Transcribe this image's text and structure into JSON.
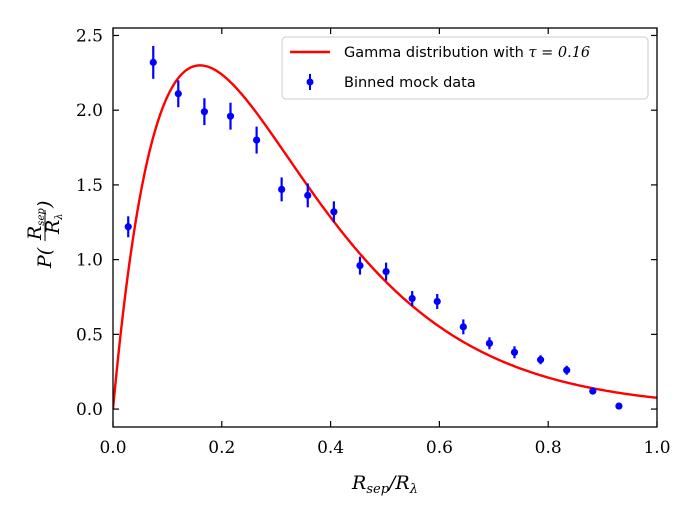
{
  "chart_data": {
    "type": "scatter",
    "xlabel": "R_sep/R_λ",
    "ylabel": "P(R_sep/R_λ)",
    "xlim": [
      0.0,
      1.0
    ],
    "ylim": [
      -0.12,
      2.55
    ],
    "xticks": [
      "0.0",
      "0.2",
      "0.4",
      "0.6",
      "0.8",
      "1.0"
    ],
    "yticks": [
      "0.0",
      "0.5",
      "1.0",
      "1.5",
      "2.0",
      "2.5"
    ],
    "legend_position": "top-right",
    "grid": false,
    "series": [
      {
        "name": "Gamma distribution with τ = 0.16",
        "kind": "line",
        "color": "#ff0000",
        "tau": 0.16,
        "peak": 2.3
      },
      {
        "name": "Binned mock data",
        "kind": "errorbar",
        "color": "#0000ff",
        "x": [
          0.028,
          0.074,
          0.12,
          0.168,
          0.216,
          0.264,
          0.31,
          0.358,
          0.406,
          0.454,
          0.502,
          0.55,
          0.596,
          0.644,
          0.692,
          0.738,
          0.786,
          0.834,
          0.882,
          0.93
        ],
        "y": [
          1.22,
          2.32,
          2.11,
          1.99,
          1.96,
          1.8,
          1.47,
          1.43,
          1.32,
          0.96,
          0.92,
          0.74,
          0.72,
          0.55,
          0.44,
          0.38,
          0.33,
          0.26,
          0.12,
          0.02
        ],
        "yerr": [
          0.07,
          0.11,
          0.09,
          0.09,
          0.09,
          0.09,
          0.08,
          0.08,
          0.07,
          0.06,
          0.06,
          0.05,
          0.05,
          0.05,
          0.04,
          0.04,
          0.03,
          0.03,
          0.02,
          0.01
        ]
      }
    ]
  },
  "labels": {
    "x_main": "R",
    "x_sub1": "sep",
    "x_slash": "/R",
    "x_sub2": "λ",
    "y_p": "P(",
    "y_num": "R",
    "y_num_sub": "sep",
    "y_den": "R",
    "y_den_sub": "λ",
    "y_close": ")",
    "legend_line": "Gamma distribution with ",
    "legend_tau": "τ = 0.16",
    "legend_points": "Binned mock data"
  }
}
